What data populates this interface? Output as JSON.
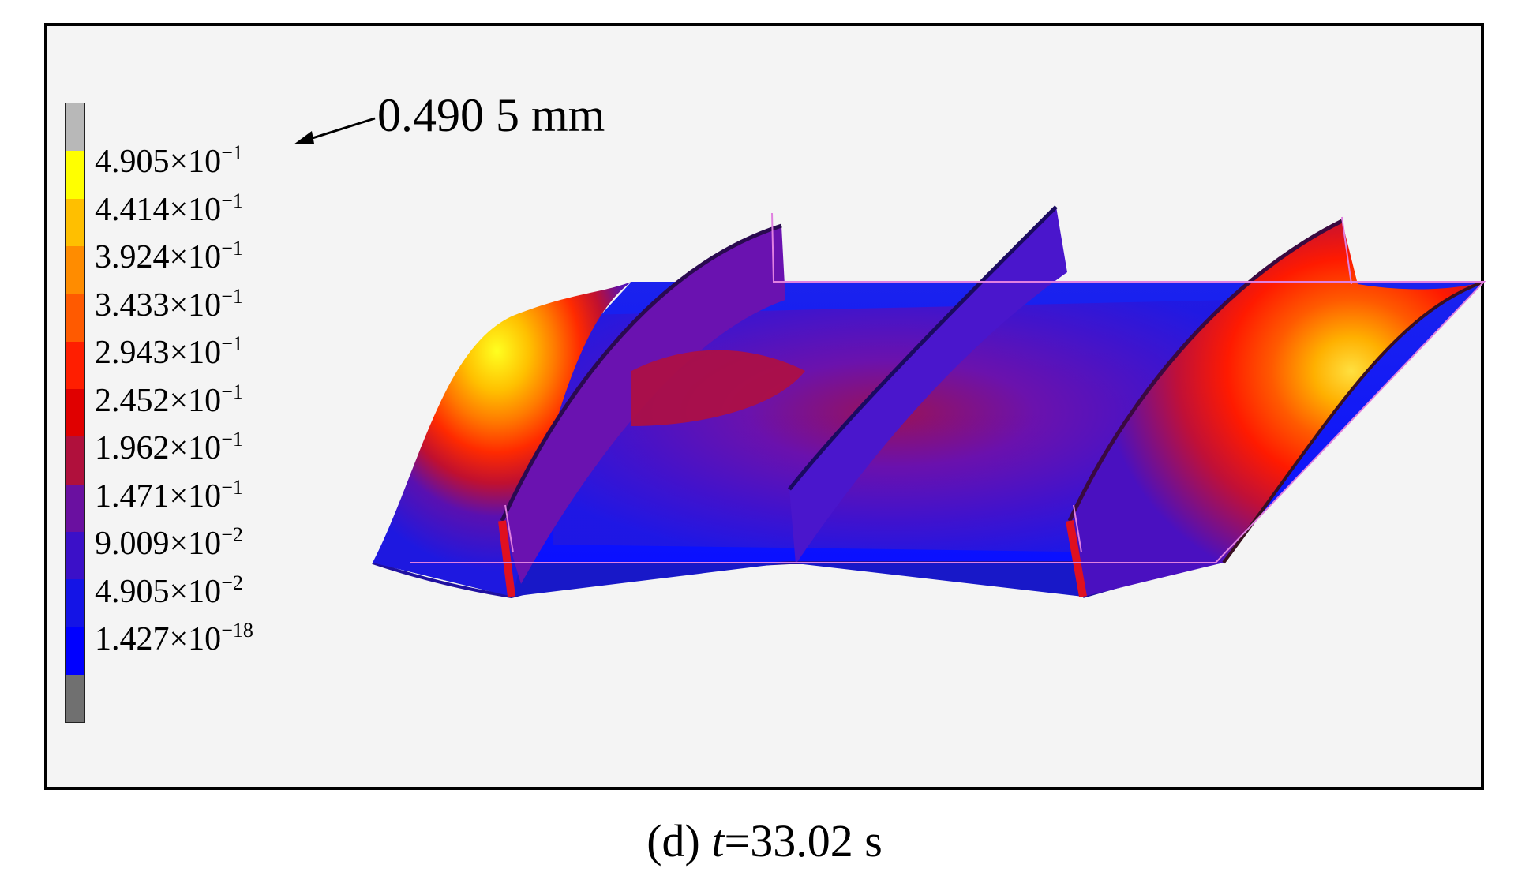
{
  "legend": {
    "colors": [
      "#b8b8b8",
      "#ffff00",
      "#ffbf00",
      "#ff8c00",
      "#ff5a00",
      "#ff1e00",
      "#e00000",
      "#b0103c",
      "#6a10a0",
      "#3b10c8",
      "#1414e6",
      "#0000ff",
      "#707070"
    ],
    "labels": [
      {
        "mantissa": "4.905",
        "exponent": "−1"
      },
      {
        "mantissa": "4.414",
        "exponent": "−1"
      },
      {
        "mantissa": "3.924",
        "exponent": "−1"
      },
      {
        "mantissa": "3.433",
        "exponent": "−1"
      },
      {
        "mantissa": "2.943",
        "exponent": "−1"
      },
      {
        "mantissa": "2.452",
        "exponent": "−1"
      },
      {
        "mantissa": "1.962",
        "exponent": "−1"
      },
      {
        "mantissa": "1.471",
        "exponent": "−1"
      },
      {
        "mantissa": "9.009",
        "exponent": "−2"
      },
      {
        "mantissa": "4.905",
        "exponent": "−2"
      },
      {
        "mantissa": "1.427",
        "exponent": "−18"
      }
    ]
  },
  "annotation": {
    "text": "0.490 5 mm"
  },
  "caption": {
    "prefix": "(d) ",
    "variable": "t",
    "suffix": "=33.02 s"
  }
}
